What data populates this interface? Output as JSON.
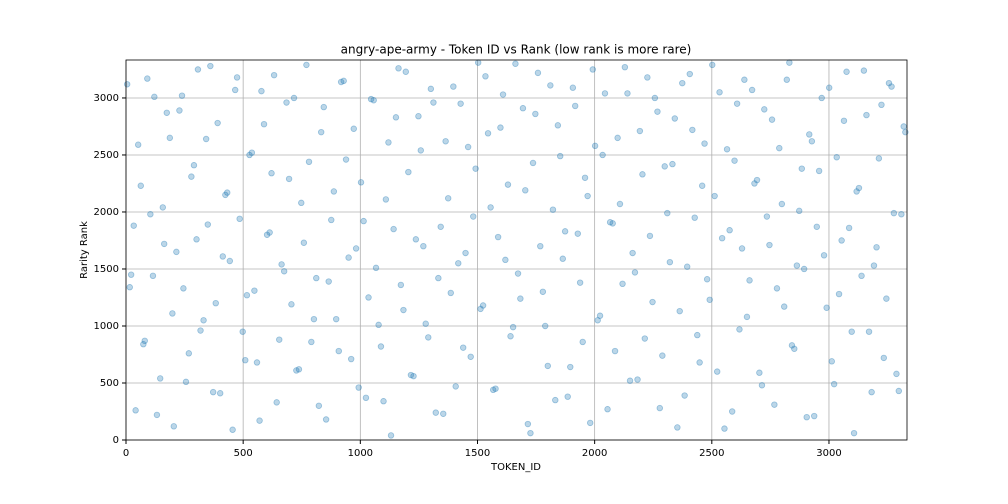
{
  "chart_data": {
    "type": "scatter",
    "title": "angry-ape-army - Token ID vs Rank (low rank is more rare)",
    "x_label": "TOKEN_ID",
    "y_label": "Rarity Rank",
    "xlim": [
      0,
      3333
    ],
    "ylim": [
      0,
      3333
    ],
    "xticks": [
      0,
      500,
      1000,
      1500,
      2000,
      2500,
      3000
    ],
    "yticks": [
      0,
      500,
      1000,
      1500,
      2000,
      2500,
      3000
    ],
    "grid": true,
    "color": "#1f77b4",
    "x": [
      5,
      22,
      41,
      63,
      80,
      104,
      121,
      146,
      163,
      187,
      204,
      228,
      245,
      268,
      290,
      307,
      331,
      349,
      372,
      391,
      413,
      432,
      455,
      474,
      498,
      516,
      537,
      559,
      578,
      602,
      621,
      643,
      664,
      685,
      706,
      727,
      748,
      770,
      791,
      812,
      833,
      854,
      876,
      897,
      918,
      939,
      961,
      982,
      1003,
      1024,
      1046,
      1067,
      1088,
      1109,
      1131,
      1152,
      1173,
      1194,
      1216,
      1237,
      1258,
      1279,
      1301,
      1322,
      1343,
      1364,
      1386,
      1407,
      1428,
      1449,
      1471,
      1492,
      1513,
      1534,
      1556,
      1577,
      1598,
      1619,
      1641,
      1662,
      1683,
      1704,
      1726,
      1747,
      1768,
      1789,
      1811,
      1832,
      1853,
      1874,
      1896,
      1917,
      1938,
      1959,
      1981,
      2002,
      2023,
      2044,
      2066,
      2087,
      2108,
      2129,
      2151,
      2172,
      2193,
      2214,
      2236,
      2257,
      2278,
      2299,
      2321,
      2342,
      2363,
      2384,
      2406,
      2427,
      2448,
      2469,
      2491,
      2512,
      2533,
      2554,
      2576,
      2597,
      2618,
      2639,
      2661,
      2682,
      2703,
      2724,
      2746,
      2767,
      2788,
      2809,
      2831,
      2852,
      2873,
      2894,
      2916,
      2937,
      2958,
      2979,
      3001,
      3022,
      3043,
      3064,
      3086,
      3107,
      3128,
      3149,
      3171,
      3192,
      3213,
      3234,
      3256,
      3277,
      3298,
      3319,
      16,
      33,
      52,
      74,
      91,
      115,
      132,
      157,
      174,
      198,
      215,
      239,
      256,
      279,
      301,
      318,
      342,
      360,
      383,
      402,
      424,
      443,
      466,
      485,
      509,
      527,
      548,
      570,
      589,
      613,
      632,
      654,
      675,
      696,
      717,
      738,
      759,
      781,
      802,
      823,
      844,
      865,
      887,
      908,
      929,
      950,
      972,
      993,
      1014,
      1035,
      1057,
      1078,
      1099,
      1120,
      1142,
      1163,
      1184,
      1205,
      1227,
      1248,
      1269,
      1290,
      1312,
      1333,
      1354,
      1375,
      1397,
      1418,
      1439,
      1460,
      1482,
      1503,
      1524,
      1545,
      1567,
      1588,
      1609,
      1630,
      1652,
      1673,
      1694,
      1715,
      1737,
      1758,
      1779,
      1800,
      1822,
      1843,
      1864,
      1885,
      1907,
      1928,
      1949,
      1970,
      1992,
      2013,
      2034,
      2055,
      2077,
      2098,
      2119,
      2140,
      2162,
      2183,
      2204,
      2225,
      2247,
      2268,
      2289,
      2310,
      2332,
      2353,
      2374,
      2395,
      2417,
      2438,
      2459,
      2480,
      2502,
      2523,
      2544,
      2565,
      2587,
      2608,
      2629,
      2650,
      2672,
      2693,
      2714,
      2735,
      2757,
      2778,
      2799,
      2820,
      2842,
      2863,
      2884,
      2905,
      2927,
      2948,
      2969,
      2990,
      3012,
      3033,
      3054,
      3075,
      3097,
      3118,
      3139,
      3160,
      3182,
      3203,
      3224,
      3245,
      3267,
      3288,
      3309,
      3326
    ],
    "y": [
      3120,
      1450,
      260,
      2230,
      870,
      1980,
      3010,
      540,
      1720,
      2650,
      120,
      2890,
      1330,
      760,
      2410,
      3250,
      1050,
      1890,
      420,
      2780,
      1610,
      2170,
      90,
      3180,
      950,
      1270,
      2520,
      680,
      3060,
      1800,
      2340,
      330,
      1540,
      2960,
      1190,
      610,
      2080,
      3290,
      860,
      1420,
      2700,
      180,
      1930,
      1060,
      3140,
      2460,
      710,
      1680,
      2260,
      370,
      2990,
      1510,
      820,
      2110,
      40,
      2830,
      1360,
      3230,
      570,
      1760,
      2540,
      1020,
      3080,
      240,
      1870,
      2620,
      1290,
      470,
      2950,
      1640,
      730,
      2380,
      1150,
      3190,
      2040,
      450,
      2740,
      1580,
      910,
      3300,
      1240,
      2190,
      60,
      2860,
      1700,
      1000,
      3110,
      350,
      2490,
      1830,
      640,
      2930,
      1380,
      2300,
      150,
      2580,
      1090,
      3040,
      1910,
      780,
      2070,
      3270,
      520,
      1470,
      2710,
      890,
      1790,
      3000,
      280,
      2400,
      1560,
      2820,
      1130,
      390,
      3210,
      1950,
      680,
      2600,
      1230,
      2140,
      3050,
      100,
      1840,
      2450,
      970,
      3160,
      1400,
      2250,
      590,
      2900,
      1710,
      310,
      2560,
      1170,
      3310,
      800,
      2010,
      1500,
      2680,
      210,
      2360,
      1620,
      3090,
      490,
      1280,
      2800,
      1860,
      60,
      2210,
      3240,
      950,
      1530,
      2470,
      720,
      3130,
      1990,
      430,
      2750,
      1340,
      1880,
      2590,
      840,
      3170,
      1440,
      220,
      2040,
      2870,
      1110,
      1650,
      3020,
      510,
      2310,
      1760,
      960,
      2640,
      3280,
      1200,
      410,
      2150,
      1570,
      3070,
      1940,
      700,
      2500,
      1310,
      170,
      2770,
      1820,
      3200,
      880,
      1480,
      2290,
      3000,
      620,
      1730,
      2440,
      1060,
      300,
      2920,
      1390,
      2180,
      780,
      3150,
      1600,
      2730,
      460,
      1920,
      1250,
      2980,
      1010,
      340,
      2610,
      1850,
      3260,
      1140,
      2350,
      560,
      2840,
      1700,
      900,
      2960,
      1420,
      230,
      2120,
      3100,
      1550,
      810,
      2570,
      1960,
      3310,
      1180,
      2690,
      440,
      1780,
      3030,
      2240,
      990,
      1460,
      2910,
      140,
      2430,
      3220,
      1300,
      650,
      2020,
      2760,
      1590,
      380,
      3090,
      1810,
      860,
      2140,
      3250,
      1050,
      2500,
      270,
      1900,
      2650,
      1370,
      3040,
      1640,
      530,
      2330,
      3180,
      1210,
      2880,
      740,
      1990,
      2420,
      110,
      3130,
      1520,
      2720,
      920,
      2230,
      1410,
      3290,
      600,
      1770,
      2550,
      250,
      2950,
      1680,
      1080,
      3070,
      2280,
      480,
      1960,
      2810,
      1330,
      2070,
      3160,
      830,
      1530,
      2380,
      200,
      2620,
      1870,
      3000,
      1160,
      690,
      2480,
      1750,
      3230,
      950,
      2180,
      1440,
      2850,
      420,
      1690,
      2940,
      1240,
      3100,
      580,
      1980,
      2700
    ]
  }
}
